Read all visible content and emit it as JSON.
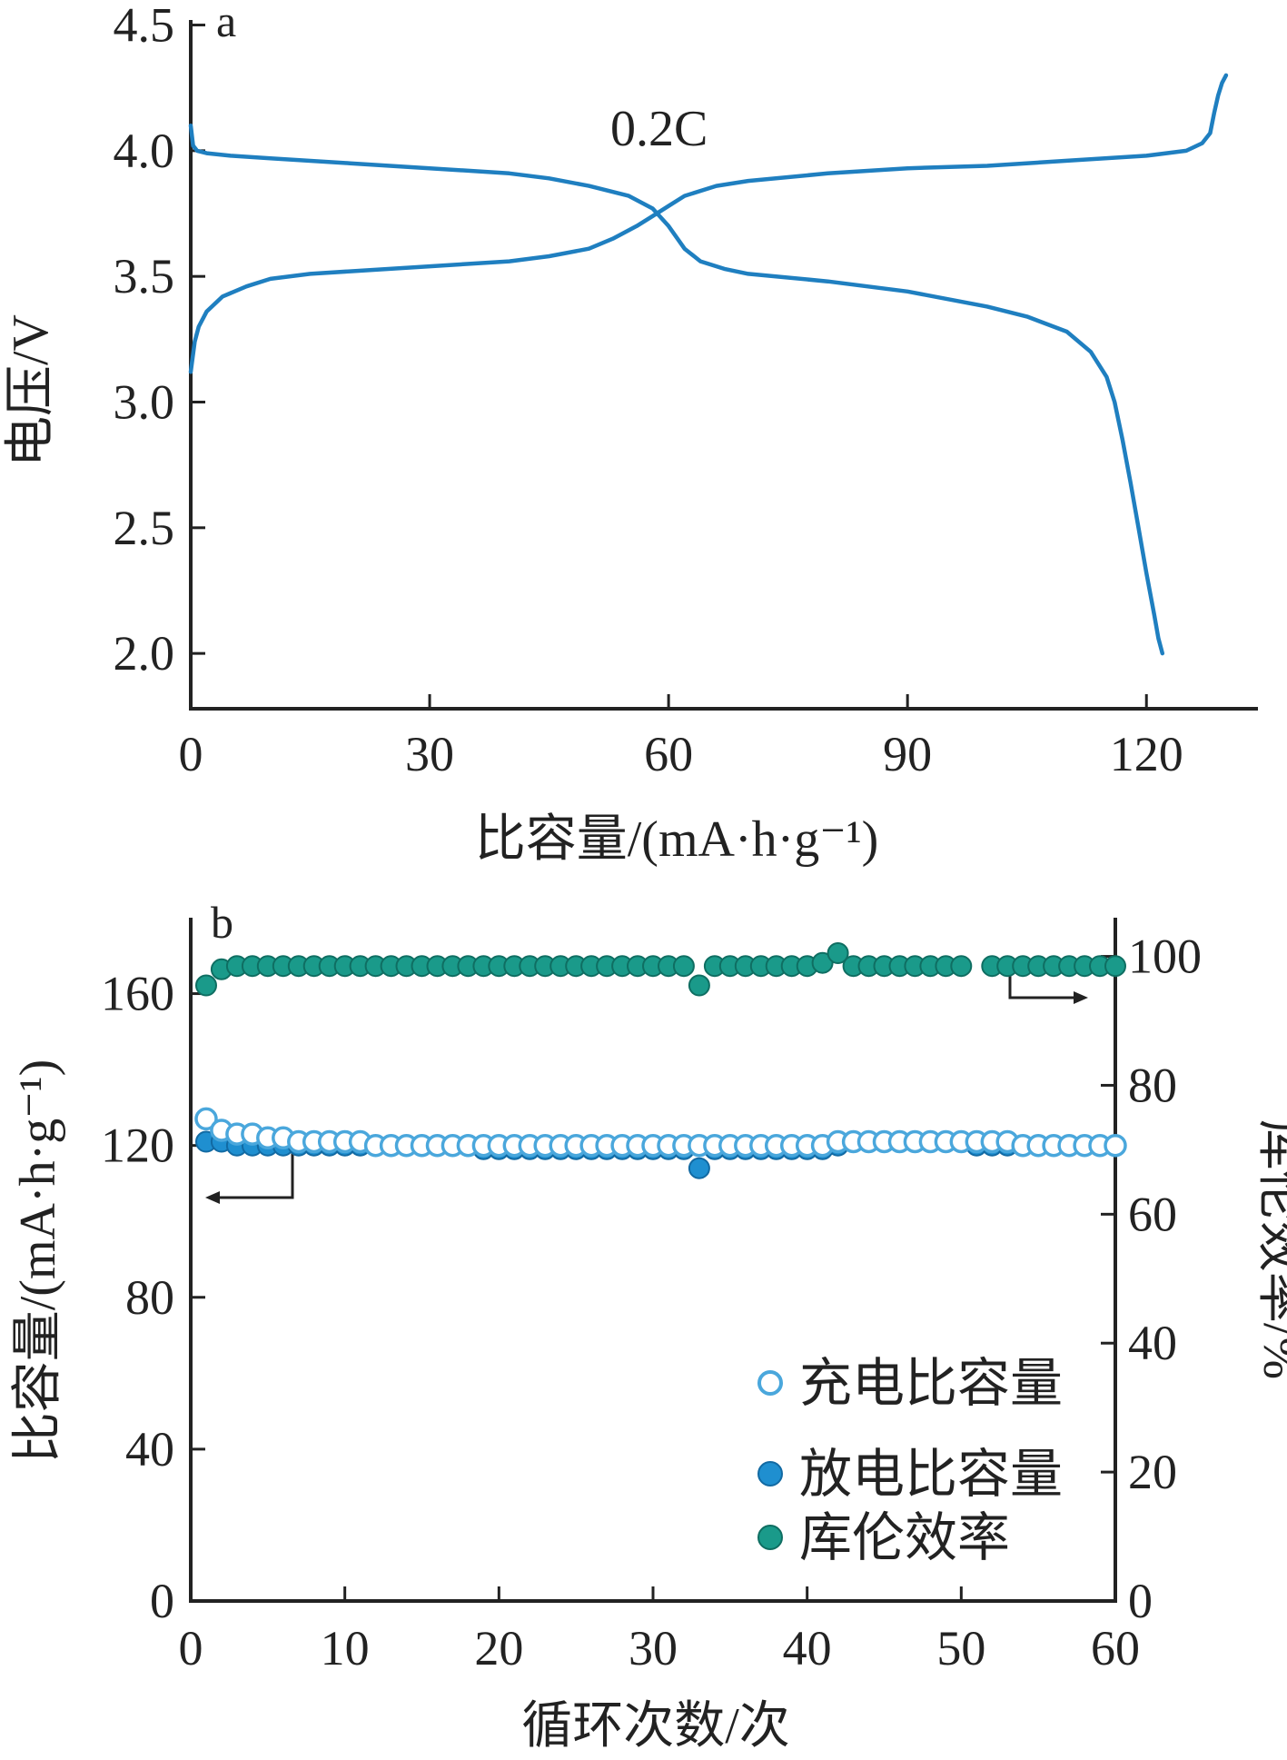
{
  "chart_data": [
    {
      "panel": "a",
      "type": "line",
      "annotation": "0.2C",
      "xlabel": "比容量/(mA·h·g⁻¹)",
      "ylabel": "电压/V",
      "xlim": [
        0,
        134
      ],
      "ylim": [
        1.78,
        4.52
      ],
      "xticks": [
        "0",
        "30",
        "60",
        "90",
        "120"
      ],
      "yticks": [
        "2.0",
        "2.5",
        "3.0",
        "3.5",
        "4.0",
        "4.5"
      ],
      "series": [
        {
          "curve": "charge",
          "color": "#1f7fc0",
          "x": [
            0,
            0.5,
            1,
            2,
            4,
            7,
            10,
            15,
            20,
            30,
            40,
            45,
            50,
            53,
            56,
            58,
            60,
            62,
            66,
            70,
            80,
            90,
            100,
            110,
            120,
            125,
            127,
            128,
            128.5,
            129,
            129.5,
            130
          ],
          "y": [
            3.12,
            3.24,
            3.3,
            3.36,
            3.42,
            3.46,
            3.49,
            3.51,
            3.52,
            3.54,
            3.56,
            3.58,
            3.61,
            3.65,
            3.7,
            3.74,
            3.78,
            3.82,
            3.86,
            3.88,
            3.91,
            3.93,
            3.94,
            3.96,
            3.98,
            4.0,
            4.03,
            4.07,
            4.15,
            4.22,
            4.27,
            4.3
          ]
        },
        {
          "curve": "discharge",
          "color": "#1f7fc0",
          "x": [
            0,
            0.3,
            0.8,
            2,
            5,
            10,
            20,
            30,
            40,
            45,
            50,
            55,
            58,
            60,
            62,
            64,
            67,
            70,
            80,
            90,
            100,
            105,
            110,
            113,
            115,
            116,
            117,
            118,
            119,
            120,
            121,
            121.5,
            122
          ],
          "y": [
            4.1,
            4.02,
            4.0,
            3.99,
            3.98,
            3.97,
            3.95,
            3.93,
            3.91,
            3.89,
            3.86,
            3.82,
            3.77,
            3.7,
            3.61,
            3.56,
            3.53,
            3.51,
            3.48,
            3.44,
            3.38,
            3.34,
            3.28,
            3.2,
            3.1,
            3.0,
            2.85,
            2.68,
            2.5,
            2.32,
            2.15,
            2.06,
            2.0
          ]
        }
      ]
    },
    {
      "panel": "b",
      "type": "scatter",
      "xlabel": "循环次数/次",
      "ylabel_left": "比容量/(mA·h·g⁻¹)",
      "ylabel_right": "库伦效率/%",
      "xlim": [
        0,
        60
      ],
      "ylim_left": [
        0,
        180
      ],
      "ylim_right": [
        0,
        106
      ],
      "xticks": [
        "0",
        "10",
        "20",
        "30",
        "40",
        "50",
        "60"
      ],
      "yticks_left": [
        "0",
        "40",
        "80",
        "120",
        "160"
      ],
      "yticks_right": [
        "0",
        "20",
        "40",
        "60",
        "80",
        "100"
      ],
      "legend_position": "bottom-right",
      "legend": [
        "充电比容量",
        "放电比容量",
        "库伦效率"
      ],
      "series": [
        {
          "name": "充电比容量",
          "axis": "left",
          "color": "#4aa7dc",
          "style": "open",
          "x": [
            1,
            2,
            3,
            4,
            5,
            6,
            7,
            8,
            9,
            10,
            11,
            12,
            13,
            14,
            15,
            16,
            17,
            18,
            19,
            20,
            21,
            22,
            23,
            24,
            25,
            26,
            27,
            28,
            29,
            30,
            31,
            32,
            33,
            34,
            35,
            36,
            37,
            38,
            39,
            40,
            41,
            42,
            43,
            44,
            45,
            46,
            47,
            48,
            49,
            50,
            51,
            52,
            53,
            54,
            55,
            56,
            57,
            58,
            59,
            60
          ],
          "y": [
            127,
            124,
            123,
            123,
            122,
            122,
            121,
            121,
            121,
            121,
            121,
            120,
            120,
            120,
            120,
            120,
            120,
            120,
            120,
            120,
            120,
            120,
            120,
            120,
            120,
            120,
            120,
            120,
            120,
            120,
            120,
            120,
            120,
            120,
            120,
            120,
            120,
            120,
            120,
            120,
            120,
            121,
            121,
            121,
            121,
            121,
            121,
            121,
            121,
            121,
            121,
            121,
            121,
            120,
            120,
            120,
            120,
            120,
            120,
            120
          ]
        },
        {
          "name": "放电比容量",
          "axis": "left",
          "color": "#1f8fd0",
          "style": "filled",
          "x": [
            1,
            2,
            3,
            4,
            5,
            6,
            7,
            8,
            9,
            10,
            11,
            12,
            13,
            14,
            15,
            16,
            17,
            18,
            19,
            20,
            21,
            22,
            23,
            24,
            25,
            26,
            27,
            28,
            29,
            30,
            31,
            32,
            33,
            34,
            35,
            36,
            37,
            38,
            39,
            40,
            41,
            42,
            43,
            44,
            45,
            46,
            47,
            48,
            49,
            50,
            51,
            52,
            53,
            54,
            55,
            56,
            57,
            58,
            59,
            60
          ],
          "y": [
            121,
            121,
            120,
            120,
            120,
            120,
            120,
            120,
            120,
            120,
            120,
            120,
            120,
            120,
            120,
            120,
            120,
            120,
            119,
            119,
            119,
            119,
            119,
            119,
            119,
            119,
            119,
            119,
            119,
            119,
            119,
            119,
            114,
            119,
            119,
            119,
            119,
            119,
            119,
            119,
            119,
            120,
            121,
            121,
            121,
            121,
            121,
            121,
            121,
            121,
            120,
            120,
            120,
            120,
            120,
            120,
            120,
            120,
            120,
            120
          ]
        },
        {
          "name": "库伦效率",
          "axis": "right",
          "color": "#1a9a8a",
          "style": "filled",
          "x": [
            1,
            2,
            3,
            4,
            5,
            6,
            7,
            8,
            9,
            10,
            11,
            12,
            13,
            14,
            15,
            16,
            17,
            18,
            19,
            20,
            21,
            22,
            23,
            24,
            25,
            26,
            27,
            28,
            29,
            30,
            31,
            32,
            33,
            34,
            35,
            36,
            37,
            38,
            39,
            40,
            41,
            42,
            43,
            44,
            45,
            46,
            47,
            48,
            49,
            50,
            52,
            53,
            54,
            55,
            56,
            57,
            58,
            59,
            60
          ],
          "y": [
            95.5,
            98,
            98.5,
            98.5,
            98.5,
            98.5,
            98.5,
            98.5,
            98.5,
            98.5,
            98.5,
            98.5,
            98.5,
            98.5,
            98.5,
            98.5,
            98.5,
            98.5,
            98.5,
            98.5,
            98.5,
            98.5,
            98.5,
            98.5,
            98.5,
            98.5,
            98.5,
            98.5,
            98.5,
            98.5,
            98.5,
            98.5,
            95.5,
            98.5,
            98.5,
            98.5,
            98.5,
            98.5,
            98.5,
            98.5,
            99,
            100.5,
            98.5,
            98.5,
            98.5,
            98.5,
            98.5,
            98.5,
            98.5,
            98.5,
            98.5,
            98.5,
            98.5,
            98.5,
            98.5,
            98.5,
            98.5,
            98.5,
            98.5
          ]
        }
      ]
    }
  ]
}
